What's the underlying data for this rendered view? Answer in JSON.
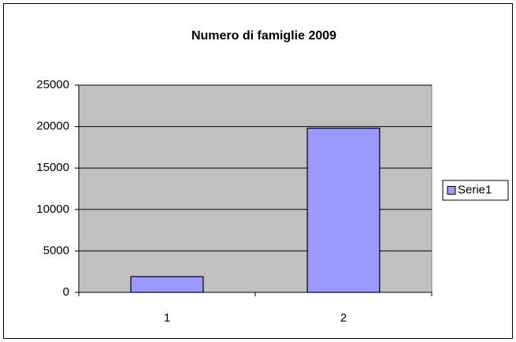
{
  "chart_data": {
    "type": "bar",
    "title": "Numero di famiglie 2009",
    "categories": [
      "1",
      "2"
    ],
    "series": [
      {
        "name": "Serie1",
        "color": "#9999ff",
        "values": [
          1900,
          19800
        ]
      }
    ],
    "ylim": [
      0,
      25000
    ],
    "yticks": [
      0,
      5000,
      10000,
      15000,
      20000,
      25000
    ],
    "grid": true,
    "legend": "right"
  }
}
